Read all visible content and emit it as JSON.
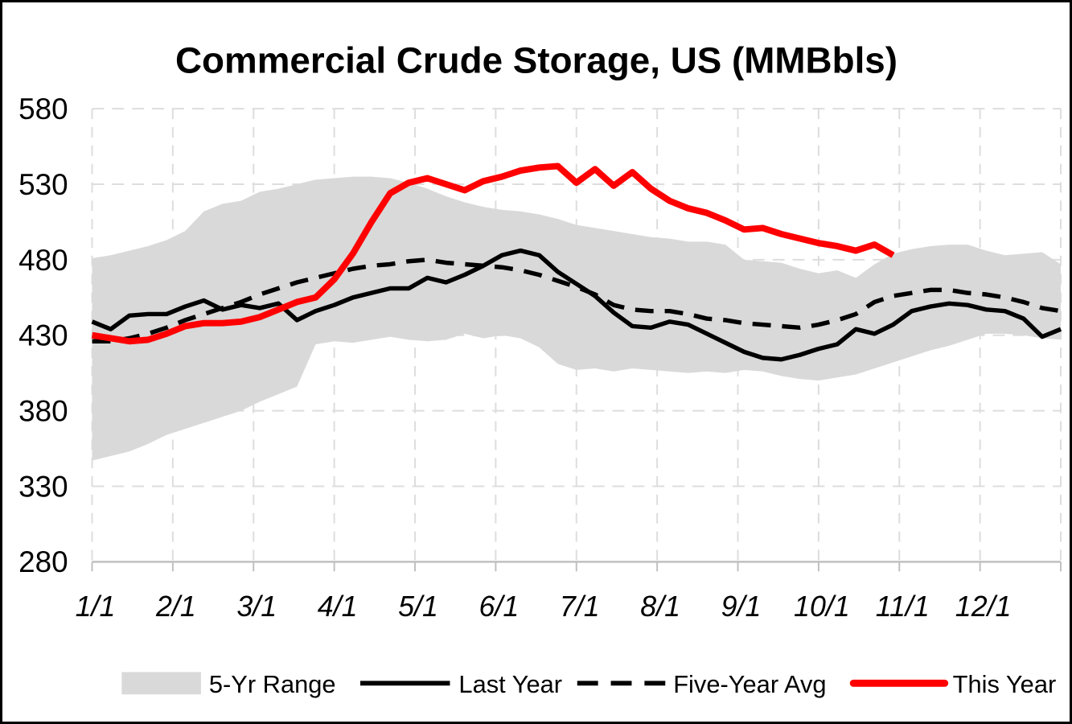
{
  "title": "Commercial Crude Storage, US (MMBbls)",
  "y_axis": {
    "tick_labels": [
      "580",
      "530",
      "480",
      "430",
      "380",
      "330",
      "280"
    ],
    "min": 280,
    "max": 580,
    "grid_interval": 50
  },
  "x_axis": {
    "tick_labels": [
      "1/1",
      "2/1",
      "3/1",
      "4/1",
      "5/1",
      "6/1",
      "7/1",
      "8/1",
      "9/1",
      "10/1",
      "11/1",
      "12/1"
    ]
  },
  "legend": {
    "items": [
      {
        "label": "5-Yr Range",
        "swatch": "band",
        "color": "#D9D9D9"
      },
      {
        "label": "Last Year",
        "swatch": "solid-line",
        "color": "#000000"
      },
      {
        "label": "Five-Year Avg",
        "swatch": "dashed-line",
        "color": "#000000"
      },
      {
        "label": "This Year",
        "swatch": "thick-line",
        "color": "#FF0000"
      }
    ]
  },
  "colors": {
    "band": "#D9D9D9",
    "black_line": "#000000",
    "red_line": "#FF0000",
    "gridline": "#DDDDDD",
    "axis_line": "#C0C0C0",
    "background": "#FFFFFF",
    "border": "#000000"
  },
  "chart_data": {
    "type": "line",
    "title": "Commercial Crude Storage, US (MMBbls)",
    "ylabel": "MMBbls",
    "ylim": [
      280,
      580
    ],
    "grid": "dashed",
    "legend_position": "bottom",
    "x_unit": "weekly points, Jan 1 through Dec 31",
    "week_dates": [
      "1/1",
      "1/8",
      "1/15",
      "1/22",
      "1/29",
      "2/5",
      "2/12",
      "2/19",
      "2/26",
      "3/5",
      "3/12",
      "3/19",
      "3/26",
      "4/2",
      "4/9",
      "4/16",
      "4/23",
      "4/30",
      "5/7",
      "5/14",
      "5/21",
      "5/28",
      "6/4",
      "6/11",
      "6/18",
      "6/25",
      "7/2",
      "7/9",
      "7/16",
      "7/23",
      "7/30",
      "8/6",
      "8/13",
      "8/20",
      "8/27",
      "9/3",
      "9/10",
      "9/17",
      "9/24",
      "10/1",
      "10/8",
      "10/15",
      "10/22",
      "10/29",
      "11/5",
      "11/12",
      "11/19",
      "11/26",
      "12/3",
      "12/10",
      "12/17",
      "12/24",
      "12/31"
    ],
    "series": [
      {
        "name": "5-Yr Range",
        "type": "band",
        "color": "#D9D9D9",
        "upper": [
          481,
          483,
          486,
          489,
          493,
          499,
          512,
          517,
          519,
          525,
          527,
          530,
          533,
          534,
          535,
          535,
          534,
          531,
          527,
          522,
          518,
          515,
          513,
          512,
          510,
          507,
          503,
          501,
          499,
          497,
          495,
          494,
          492,
          492,
          490,
          480,
          479,
          478,
          474,
          471,
          473,
          468,
          477,
          484,
          487,
          489,
          490,
          490,
          486,
          483,
          484,
          485,
          477
        ],
        "lower": [
          347,
          350,
          353,
          358,
          364,
          368,
          372,
          376,
          380,
          386,
          391,
          396,
          424,
          426,
          425,
          427,
          429,
          427,
          426,
          427,
          431,
          428,
          430,
          428,
          422,
          411,
          407,
          408,
          406,
          408,
          407,
          406,
          405,
          406,
          405,
          407,
          406,
          403,
          401,
          400,
          402,
          404,
          408,
          412,
          416,
          420,
          423,
          427,
          431,
          431,
          430,
          428,
          427
        ]
      },
      {
        "name": "Last Year",
        "type": "line",
        "line_style": "solid",
        "color": "#000000",
        "values": [
          439,
          434,
          443,
          444,
          444,
          449,
          453,
          447,
          450,
          448,
          451,
          440,
          446,
          450,
          455,
          458,
          461,
          461,
          468,
          465,
          470,
          476,
          483,
          486,
          483,
          472,
          464,
          456,
          445,
          436,
          435,
          439,
          437,
          431,
          425,
          419,
          415,
          414,
          417,
          421,
          424,
          434,
          431,
          437,
          446,
          449,
          451,
          450,
          447,
          446,
          441,
          429,
          434
        ]
      },
      {
        "name": "Five-Year Avg",
        "type": "line",
        "line_style": "dashed",
        "color": "#000000",
        "values": [
          426,
          426,
          428,
          431,
          435,
          440,
          444,
          448,
          452,
          457,
          461,
          465,
          468,
          471,
          474,
          476,
          477,
          479,
          480,
          478,
          477,
          476,
          475,
          473,
          470,
          466,
          462,
          457,
          450,
          447,
          446,
          446,
          444,
          441,
          440,
          438,
          437,
          436,
          435,
          437,
          440,
          444,
          452,
          456,
          458,
          460,
          460,
          458,
          457,
          455,
          452,
          448,
          446
        ]
      },
      {
        "name": "This Year",
        "type": "line",
        "line_style": "solid",
        "color": "#FF0000",
        "ends_at": "10/29",
        "values": [
          430,
          428,
          426,
          427,
          431,
          436,
          438,
          438,
          439,
          442,
          447,
          452,
          455,
          467,
          484,
          505,
          524,
          531,
          534,
          530,
          526,
          532,
          535,
          539,
          541,
          542,
          531,
          540,
          529,
          538,
          527,
          519,
          514,
          511,
          506,
          500,
          501,
          497,
          494,
          491,
          489,
          486,
          490,
          483
        ]
      }
    ]
  }
}
